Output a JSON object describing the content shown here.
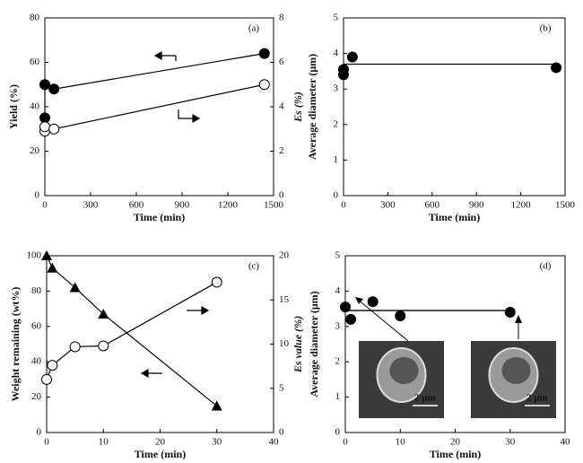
{
  "chart_data": [
    {
      "type": "scatter",
      "panel_label": "(a)",
      "x_label": "Time (min)",
      "y_label": "Yield (%)",
      "y2_label": "Es (%)",
      "xlim": [
        0,
        1500
      ],
      "xticks": [
        0,
        300,
        600,
        900,
        1200,
        1500
      ],
      "ylim": [
        0,
        80
      ],
      "yticks": [
        0,
        20,
        40,
        60,
        80
      ],
      "y2lim": [
        0,
        8
      ],
      "y2ticks": [
        0,
        2,
        4,
        6,
        8
      ],
      "series": [
        {
          "marker": "filled-circle",
          "line": true,
          "x": [
            0,
            0,
            60,
            1440
          ],
          "values": [
            35,
            50,
            48,
            64
          ]
        },
        {
          "marker": "open-circle",
          "line": true,
          "axis": "y2",
          "x": [
            0,
            0,
            60,
            1440
          ],
          "values": [
            2.9,
            3.1,
            3.0,
            5.0
          ]
        }
      ]
    },
    {
      "type": "scatter",
      "panel_label": "(b)",
      "x_label": "Time (min)",
      "y_label": "Average diameter (μm)",
      "xlim": [
        0,
        1500
      ],
      "xticks": [
        0,
        300,
        600,
        900,
        1200,
        1500
      ],
      "ylim": [
        0,
        5
      ],
      "yticks": [
        0,
        1,
        2,
        3,
        4,
        5
      ],
      "series": [
        {
          "marker": "filled-circle",
          "line": false,
          "x": [
            0,
            0,
            60,
            1440
          ],
          "values": [
            3.4,
            3.55,
            3.9,
            3.6
          ]
        }
      ],
      "hline": {
        "value": 3.7,
        "x": [
          0,
          1440
        ]
      }
    },
    {
      "type": "scatter",
      "panel_label": "(c)",
      "x_label": "Time (min)",
      "y_label": "Weight remaining (wt%)",
      "y2_label": "Es value (%)",
      "xlim": [
        0,
        40
      ],
      "xticks": [
        0,
        10,
        20,
        30,
        40
      ],
      "ylim": [
        0,
        100
      ],
      "yticks": [
        0,
        20,
        40,
        60,
        80,
        100
      ],
      "y2lim": [
        0,
        20
      ],
      "y2ticks": [
        0,
        5,
        10,
        15,
        20
      ],
      "series": [
        {
          "marker": "filled-triangle",
          "line": true,
          "x": [
            0,
            1,
            5,
            10,
            30
          ],
          "values": [
            100,
            93,
            82,
            67,
            15
          ]
        },
        {
          "marker": "open-circle",
          "line": true,
          "axis": "y2",
          "x": [
            0,
            1,
            5,
            10,
            30
          ],
          "values": [
            6,
            7.6,
            9.7,
            9.8,
            17
          ]
        }
      ]
    },
    {
      "type": "scatter",
      "panel_label": "(d)",
      "x_label": "Time (min)",
      "y_label": "Average diameter (μm)",
      "xlim": [
        0,
        40
      ],
      "xticks": [
        0,
        10,
        20,
        30,
        40
      ],
      "ylim": [
        0,
        5
      ],
      "yticks": [
        0,
        1,
        2,
        3,
        4,
        5
      ],
      "series": [
        {
          "marker": "filled-circle",
          "line": false,
          "x": [
            0,
            1,
            5,
            10,
            30
          ],
          "values": [
            3.55,
            3.2,
            3.7,
            3.3,
            3.4
          ]
        }
      ],
      "hline": {
        "value": 3.45,
        "x": [
          0,
          30
        ]
      },
      "insets": [
        {
          "scale_label": "2 μm"
        },
        {
          "scale_label": "2 μm"
        }
      ]
    }
  ]
}
